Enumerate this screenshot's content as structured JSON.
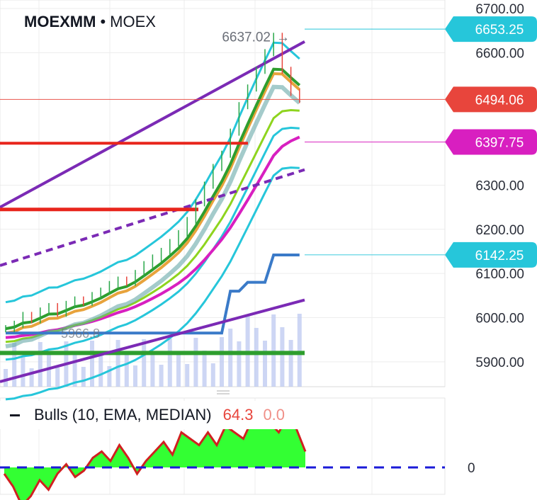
{
  "header": {
    "symbol": "MOEXMM",
    "separator": "•",
    "exchange": "MOEX"
  },
  "chart_data": {
    "type": "line",
    "y_axis": {
      "min": 5850,
      "max": 6700,
      "ticks": [
        "6700.00",
        "6600.00",
        "6300.00",
        "6200.00",
        "6100.00",
        "6000.00",
        "5900.00"
      ]
    },
    "price_labels": [
      {
        "text": "6653.25",
        "value": 6653.25,
        "color": "#26c6da"
      },
      {
        "text": "6494.06",
        "value": 6494.06,
        "color": "#e8453c"
      },
      {
        "text": "6397.75",
        "value": 6397.75,
        "color": "#d81fc0"
      },
      {
        "text": "6142.25",
        "value": 6142.25,
        "color": "#26c6da"
      }
    ],
    "annotations": {
      "high_label": "6637.02",
      "high_value": 6637.02,
      "high_arrow": "→",
      "low_label": "5966.8",
      "low_value": 5966.8
    },
    "close_series": [
      5975,
      5985,
      6005,
      5995,
      6015,
      6025,
      6010,
      6030,
      6040,
      6035,
      6050,
      6060,
      6075,
      6085,
      6080,
      6100,
      6120,
      6135,
      6150,
      6170,
      6190,
      6220,
      6260,
      6300,
      6340,
      6370,
      6420,
      6480,
      6520,
      6560,
      6600,
      6637,
      6560,
      6510,
      6494
    ],
    "indicator": {
      "name": "Bulls (10, EMA, MEDIAN)",
      "value": "64.3",
      "value2": "0.0",
      "zero_label": "0",
      "values": [
        -10,
        -30,
        -60,
        -45,
        -20,
        -35,
        -10,
        5,
        -15,
        -5,
        15,
        25,
        10,
        35,
        15,
        -10,
        10,
        25,
        40,
        20,
        55,
        45,
        35,
        55,
        35,
        65,
        55,
        45,
        75,
        65,
        70,
        55,
        80,
        60,
        25
      ]
    }
  },
  "colors": {
    "accent_cyan": "#26c6da",
    "red": "#e8453c",
    "magenta": "#d81fc0",
    "purple": "#7b2ab5",
    "green": "#2e9e2e",
    "lime": "#8ed41e",
    "blue": "#3a7ac8",
    "bull_fill": "#33ff33"
  }
}
